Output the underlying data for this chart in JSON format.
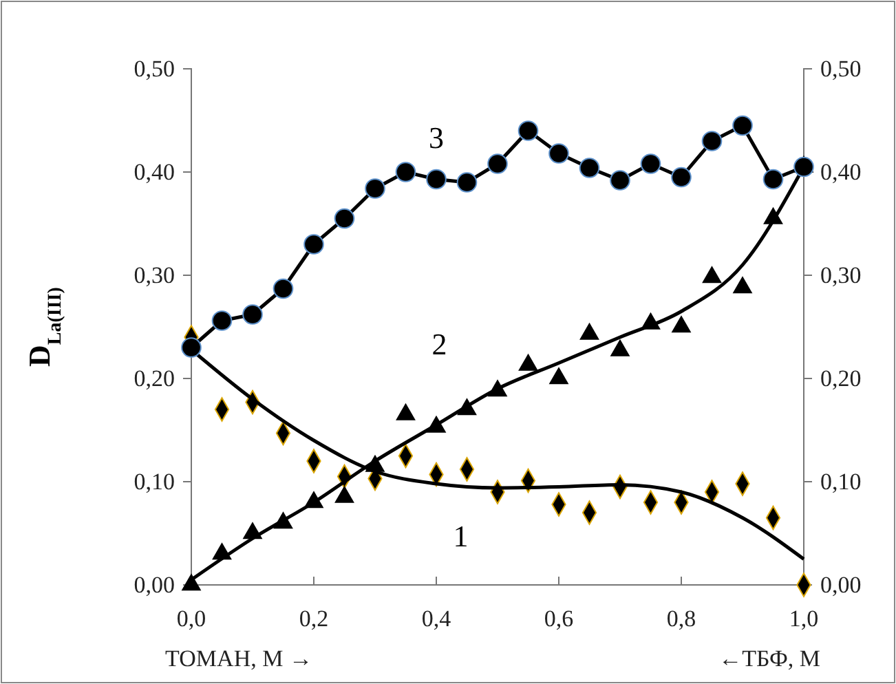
{
  "chart_data": {
    "type": "scatter",
    "xlabel": "ТОМАН, М →",
    "ylabel": "D$_{La(III)}$",
    "annotations": [
      "←ТБФ, М"
    ],
    "xlim": [
      0,
      1
    ],
    "xticks": [
      {
        "value": 0,
        "label": "0,0"
      },
      {
        "value": 0.2,
        "label": "0,2"
      },
      {
        "value": 0.4,
        "label": "0,4"
      },
      {
        "value": 0.6,
        "label": "0,6"
      },
      {
        "value": 0.8,
        "label": "0,8"
      },
      {
        "value": 1,
        "label": "1,0"
      }
    ],
    "ylim": [
      0,
      0.5
    ],
    "yticks": [
      {
        "value": 0,
        "label": "0,00"
      },
      {
        "value": 0.1,
        "label": "0,10"
      },
      {
        "value": 0.2,
        "label": "0,20"
      },
      {
        "value": 0.3,
        "label": "0,30"
      },
      {
        "value": 0.4,
        "label": "0,40"
      },
      {
        "value": 0.5,
        "label": "0,50"
      }
    ],
    "y2lim": [
      0,
      0.5
    ],
    "y2ticks": [
      {
        "value": 0,
        "label": "0,00"
      },
      {
        "value": 0.1,
        "label": "0,10"
      },
      {
        "value": 0.2,
        "label": "0,20"
      },
      {
        "value": 0.3,
        "label": "0,30"
      },
      {
        "value": 0.4,
        "label": "0,40"
      },
      {
        "value": 0.5,
        "label": "0,50"
      }
    ],
    "x": [
      0,
      0.05,
      0.1,
      0.15,
      0.2,
      0.25,
      0.3,
      0.35,
      0.4,
      0.45,
      0.5,
      0.55,
      0.6,
      0.65,
      0.7,
      0.75,
      0.8,
      0.85,
      0.9,
      0.95,
      1.0
    ],
    "grid": false,
    "legend": false,
    "series": [
      {
        "name": "1",
        "marker": "diamond",
        "color": "#000000",
        "values": [
          0.24,
          0.17,
          0.177,
          0.147,
          0.12,
          0.105,
          0.103,
          0.125,
          0.107,
          0.112,
          0.09,
          0.101,
          0.078,
          0.07,
          0.095,
          0.08,
          0.08,
          0.09,
          0.098,
          0.065,
          0.0
        ]
      },
      {
        "type": "line",
        "marker": "none",
        "color": "#000000",
        "x": [
          0,
          0.1,
          0.2,
          0.3,
          0.4,
          0.5,
          0.6,
          0.7,
          0.8,
          0.9,
          1.0
        ],
        "values": [
          0.228,
          0.18,
          0.14,
          0.11,
          0.098,
          0.094,
          0.095,
          0.097,
          0.09,
          0.065,
          0.025
        ]
      },
      {
        "name": "2",
        "marker": "triangle",
        "color": "#000000",
        "values": [
          0.0,
          0.03,
          0.05,
          0.06,
          0.08,
          0.085,
          0.115,
          0.165,
          0.153,
          0.17,
          0.188,
          0.213,
          0.2,
          0.243,
          0.227,
          0.253,
          0.25,
          0.298,
          0.288,
          0.355,
          0.405
        ]
      },
      {
        "type": "line",
        "marker": "none",
        "color": "#000000",
        "x": [
          0,
          0.1,
          0.2,
          0.3,
          0.4,
          0.5,
          0.6,
          0.7,
          0.8,
          0.9,
          1.0
        ],
        "values": [
          0.005,
          0.045,
          0.08,
          0.12,
          0.155,
          0.19,
          0.215,
          0.24,
          0.265,
          0.31,
          0.405
        ]
      },
      {
        "name": "3",
        "type": "line",
        "marker": "circle",
        "color": "#000000",
        "values": [
          0.23,
          0.256,
          0.262,
          0.287,
          0.33,
          0.355,
          0.384,
          0.4,
          0.393,
          0.39,
          0.408,
          0.44,
          0.418,
          0.404,
          0.392,
          0.408,
          0.395,
          0.43,
          0.445,
          0.393,
          0.405
        ]
      }
    ]
  }
}
